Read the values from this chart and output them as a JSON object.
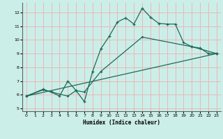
{
  "xlabel": "Humidex (Indice chaleur)",
  "ylabel": "",
  "bg_color": "#cceee8",
  "grid_color": "#e8b8b8",
  "line_color": "#1a6b5a",
  "xlim": [
    -0.5,
    23.5
  ],
  "ylim": [
    4.8,
    12.7
  ],
  "yticks": [
    5,
    6,
    7,
    8,
    9,
    10,
    11,
    12
  ],
  "xticks": [
    0,
    1,
    2,
    3,
    4,
    5,
    6,
    7,
    8,
    9,
    10,
    11,
    12,
    13,
    14,
    15,
    16,
    17,
    18,
    19,
    20,
    21,
    22,
    23
  ],
  "line1_x": [
    0,
    2,
    3,
    4,
    5,
    6,
    7,
    8,
    9,
    10,
    11,
    12,
    13,
    14,
    15,
    16,
    17,
    18,
    19,
    20,
    21,
    22,
    23
  ],
  "line1_y": [
    5.9,
    6.4,
    6.2,
    5.9,
    7.0,
    6.3,
    5.5,
    7.7,
    9.35,
    10.25,
    11.3,
    11.6,
    11.15,
    12.3,
    11.65,
    11.2,
    11.15,
    11.15,
    9.8,
    9.5,
    9.4,
    9.0,
    9.0
  ],
  "line2_x": [
    0,
    2,
    3,
    5,
    6,
    7,
    9,
    14,
    20,
    23
  ],
  "line2_y": [
    5.9,
    6.35,
    6.2,
    5.9,
    6.3,
    6.2,
    7.7,
    10.2,
    9.5,
    9.0
  ],
  "line3_x": [
    0,
    23
  ],
  "line3_y": [
    5.9,
    9.0
  ]
}
